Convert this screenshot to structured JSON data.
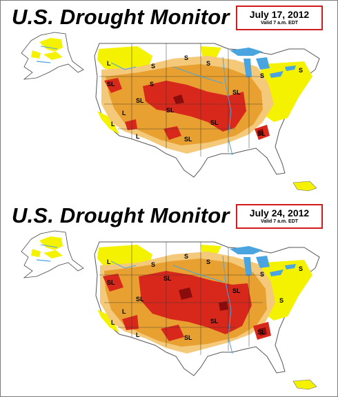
{
  "panels": [
    {
      "title": "U.S. Drought Monitor",
      "date": "July 17, 2012",
      "valid": "Valid 7 a.m. EDT",
      "labels": [
        "L",
        "S",
        "S",
        "S",
        "S",
        "SL",
        "S",
        "SL",
        "SL",
        "L",
        "L",
        "SL",
        "SL",
        "S",
        "SL",
        "L",
        "SL"
      ]
    },
    {
      "title": "U.S. Drought Monitor",
      "date": "July 24, 2012",
      "valid": "Valid 7 a.m. EDT",
      "labels": [
        "L",
        "S",
        "S",
        "S",
        "SL",
        "SL",
        "S",
        "SL",
        "SL",
        "SL",
        "L",
        "L",
        "SL",
        "S",
        "S",
        "SL",
        "L"
      ]
    }
  ],
  "legend_colors": {
    "abnormally_dry": "#f5f200",
    "moderate": "#f4c97a",
    "severe": "#e8a030",
    "extreme": "#d8281c",
    "exceptional": "#8a0c0c",
    "water": "#4aa4e0"
  }
}
